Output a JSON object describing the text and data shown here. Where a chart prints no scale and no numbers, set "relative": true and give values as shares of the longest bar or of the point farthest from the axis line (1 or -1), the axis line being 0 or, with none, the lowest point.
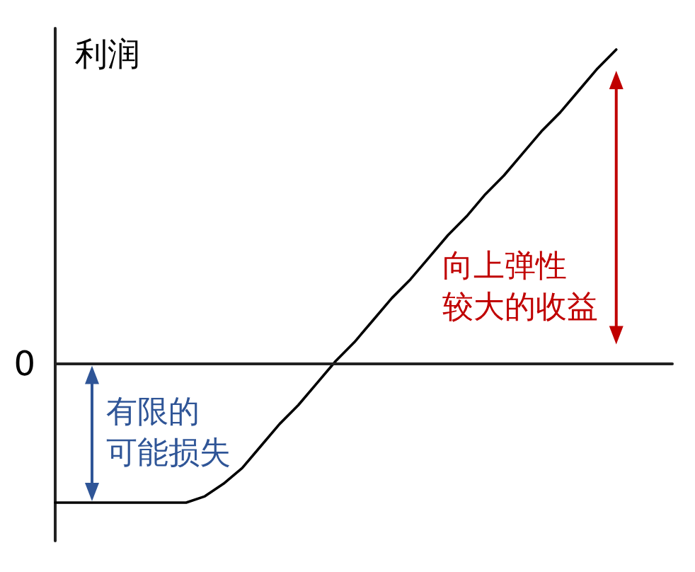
{
  "chart_data": {
    "type": "line",
    "relative": true,
    "ylabel": "利润",
    "categories": [
      null,
      null,
      null,
      null,
      null,
      null,
      null,
      null,
      null,
      null,
      null,
      null,
      null,
      null,
      null,
      null,
      null,
      null,
      null,
      null,
      null,
      null,
      null,
      null,
      null,
      null,
      null,
      null,
      null,
      null,
      null,
      null,
      null,
      null
    ],
    "values": [
      -0.44,
      -0.44,
      -0.44,
      -0.44,
      -0.44,
      -0.44,
      -0.44,
      -0.44,
      -0.42,
      -0.38,
      -0.33,
      -0.26,
      -0.19,
      -0.13,
      -0.06,
      0.01,
      0.07,
      0.14,
      0.21,
      0.27,
      0.34,
      0.41,
      0.47,
      0.54,
      0.6,
      0.67,
      0.74,
      0.8,
      0.87,
      0.94,
      1,
      null,
      null,
      null
    ],
    "color": "#000000",
    "marker": "none",
    "ref_lines": [
      {
        "axis": "y",
        "value": 0,
        "label": "0"
      }
    ],
    "annotations": [
      "向上弹性较大的收益",
      "有限的可能损失"
    ]
  }
}
